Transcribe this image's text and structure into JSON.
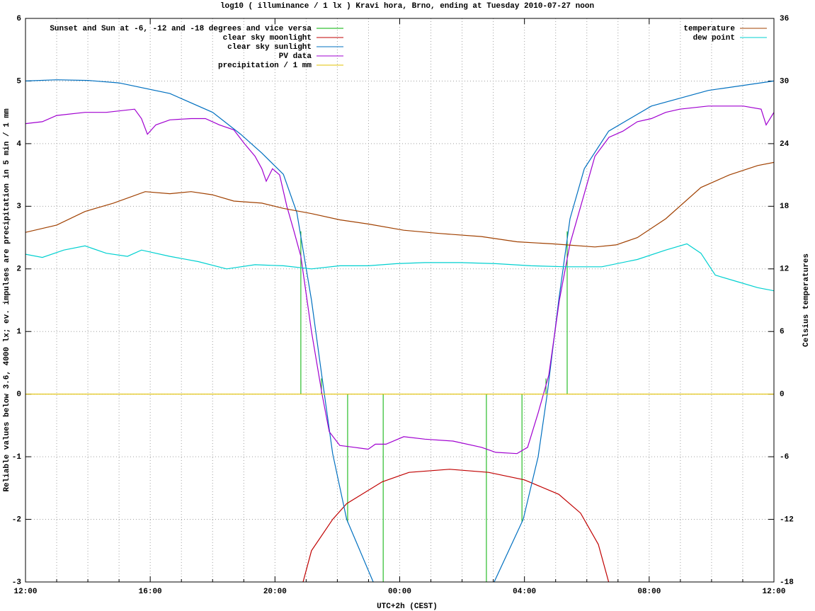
{
  "chart_data": {
    "type": "line",
    "title": "log10 ( illuminance / 1 lx ) Kravi hora, Brno, ending at Tuesday 2010-07-27 noon",
    "xlabel": "UTC+2h (CEST)",
    "ylabel": "Reliable values below 3.6, 4000 lx; ev. impulses are precipitation in 5 min / 1 mm",
    "y2label": "Celsius temperatures",
    "xlim": [
      0,
      24
    ],
    "xticks": [
      {
        "value": 0,
        "label": "12:00"
      },
      {
        "value": 4,
        "label": "16:00"
      },
      {
        "value": 8,
        "label": "20:00"
      },
      {
        "value": 12,
        "label": "00:00"
      },
      {
        "value": 16,
        "label": "04:00"
      },
      {
        "value": 20,
        "label": "08:00"
      },
      {
        "value": 24,
        "label": "12:00"
      }
    ],
    "minor_xticks": 4,
    "ylim": [
      -3,
      6
    ],
    "yticks": [
      -3,
      -2,
      -1,
      0,
      1,
      2,
      3,
      4,
      5,
      6
    ],
    "y2lim": [
      -18,
      36
    ],
    "y2ticks": [
      -18,
      -12,
      -6,
      0,
      6,
      12,
      18,
      24,
      30,
      36
    ],
    "grid": true,
    "series": [
      {
        "name": "Sunset and Sun at -6, -12 and -18 degrees and vice versa",
        "color": "#00b000",
        "style": "impulses",
        "x": [
          8.83,
          9.49,
          10.33,
          11.47,
          14.78,
          15.92,
          16.69,
          17.37
        ],
        "values": [
          2.6,
          0.25,
          -2.05,
          -3.0,
          -3.0,
          -2.05,
          0.25,
          2.6
        ]
      },
      {
        "name": "clear sky moonlight",
        "color": "#c00000",
        "x": [
          8.9,
          9.17,
          9.85,
          10.3,
          11.44,
          12.3,
          13.6,
          14.85,
          16,
          17.1,
          17.8,
          18.37,
          18.7
        ],
        "values": [
          -3,
          -2.5,
          -2.0,
          -1.75,
          -1.4,
          -1.25,
          -1.2,
          -1.25,
          -1.37,
          -1.6,
          -1.9,
          -2.4,
          -3
        ]
      },
      {
        "name": "clear sky sunlight",
        "color": "#0070c0",
        "x": [
          0,
          1,
          2,
          3,
          4.63,
          6,
          6.9,
          7.58,
          8.27,
          8.7,
          9.17,
          9.5,
          9.85,
          10.3,
          11.15,
          13.1,
          15.03,
          15.96,
          16.44,
          16.73,
          17.1,
          17.46,
          17.92,
          18.7,
          20.07,
          21.9,
          24
        ],
        "values": [
          5.0,
          5.02,
          5.01,
          4.97,
          4.8,
          4.5,
          4.15,
          3.85,
          3.51,
          2.9,
          1.5,
          0.3,
          -0.95,
          -2.0,
          -3.0,
          null,
          -3.0,
          -2.0,
          -1.0,
          0,
          1.5,
          2.8,
          3.6,
          4.2,
          4.6,
          4.85,
          5.0
        ]
      },
      {
        "name": "PV data",
        "color": "#a000d0",
        "x": [
          0,
          0.54,
          1.0,
          1.91,
          2.59,
          3.5,
          3.72,
          3.91,
          4.18,
          4.63,
          5.31,
          5.77,
          6.22,
          6.68,
          7.02,
          7.36,
          7.58,
          7.72,
          7.92,
          8.15,
          8.38,
          8.61,
          8.83,
          9.17,
          9.51,
          9.74,
          10.08,
          10.54,
          10.99,
          11.22,
          11.56,
          12.13,
          12.81,
          13.71,
          14.62,
          15.08,
          15.76,
          16.1,
          16.44,
          16.78,
          17.12,
          17.46,
          17.92,
          18.26,
          18.71,
          19.16,
          19.62,
          20.07,
          20.53,
          20.98,
          21.89,
          23.02,
          23.59,
          23.75,
          24
        ],
        "values": [
          4.32,
          4.35,
          4.45,
          4.5,
          4.5,
          4.55,
          4.4,
          4.15,
          4.3,
          4.38,
          4.4,
          4.4,
          4.3,
          4.22,
          4.0,
          3.8,
          3.6,
          3.4,
          3.6,
          3.5,
          3.0,
          2.6,
          2.2,
          1.0,
          0,
          -0.6,
          -0.82,
          -0.85,
          -0.88,
          -0.8,
          -0.8,
          -0.68,
          -0.72,
          -0.75,
          -0.85,
          -0.93,
          -0.95,
          -0.85,
          -0.3,
          0.3,
          1.5,
          2.4,
          3.2,
          3.8,
          4.1,
          4.2,
          4.35,
          4.4,
          4.5,
          4.55,
          4.6,
          4.6,
          4.55,
          4.3,
          4.5
        ]
      },
      {
        "name": "precipitation / 1 mm",
        "color": "#e0c000",
        "x": [
          0,
          24
        ],
        "values": [
          0,
          0
        ]
      },
      {
        "name": "temperature",
        "color": "#a04000",
        "axis": "y2",
        "x": [
          0,
          1.0,
          1.91,
          2.82,
          3.84,
          4.63,
          5.31,
          5.99,
          6.68,
          7.58,
          8.27,
          9.17,
          10.08,
          10.99,
          12.13,
          13.26,
          14.62,
          15.76,
          16.89,
          18.26,
          18.94,
          19.62,
          20.53,
          21.66,
          22.57,
          23.48,
          24
        ],
        "values": [
          15.5,
          16.2,
          17.5,
          18.3,
          19.4,
          19.2,
          19.4,
          19.1,
          18.5,
          18.3,
          17.8,
          17.3,
          16.7,
          16.3,
          15.7,
          15.4,
          15.1,
          14.6,
          14.4,
          14.1,
          14.3,
          15.0,
          16.8,
          19.8,
          21.0,
          21.9,
          22.2
        ]
      },
      {
        "name": "dew point",
        "color": "#00d0d0",
        "axis": "y2",
        "x": [
          0,
          0.54,
          1.23,
          1.91,
          2.59,
          3.27,
          3.72,
          4.63,
          5.54,
          6.45,
          7.36,
          8.27,
          9.17,
          10.08,
          10.99,
          11.9,
          12.81,
          13.94,
          15.08,
          16.21,
          17.35,
          18.48,
          19.62,
          20.53,
          21.21,
          21.66,
          22.12,
          22.8,
          23.48,
          24
        ],
        "values": [
          13.4,
          13.1,
          13.8,
          14.2,
          13.5,
          13.2,
          13.8,
          13.2,
          12.7,
          12.0,
          12.4,
          12.3,
          12.0,
          12.3,
          12.3,
          12.5,
          12.6,
          12.6,
          12.5,
          12.3,
          12.2,
          12.2,
          12.9,
          13.8,
          14.4,
          13.5,
          11.4,
          10.8,
          10.2,
          9.9
        ]
      }
    ]
  }
}
